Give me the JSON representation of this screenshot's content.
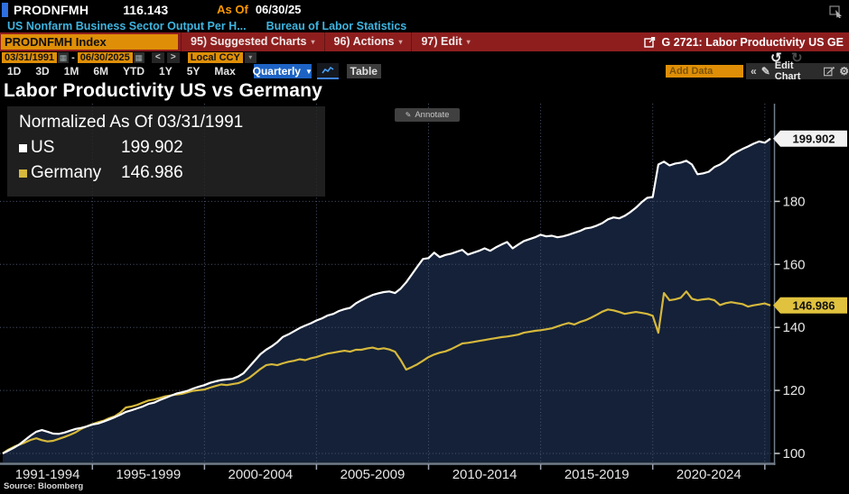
{
  "top_bar": {
    "ticker": "PRODNFMH",
    "last_value": "116.143",
    "as_of_label": "As Of",
    "as_of_date": "06/30/25"
  },
  "security_line": {
    "description": "US Nonfarm Business Sector Output Per H...",
    "provider": "Bureau of Labor Statistics"
  },
  "menu_bar": {
    "security_field": "PRODNFMH Index",
    "suggested_charts": "95) Suggested Charts",
    "actions": "96) Actions",
    "edit": "97) Edit",
    "chart_id": "G 2721: Labor Productivity US GE"
  },
  "range_bar": {
    "start_date": "03/31/1991",
    "separator": "-",
    "end_date": "06/30/2025",
    "prev": "<",
    "next": ">",
    "currency": "Local CCY"
  },
  "toolbar": {
    "periods": [
      "1D",
      "3D",
      "1M",
      "6M",
      "YTD",
      "1Y",
      "5Y",
      "Max"
    ],
    "frequency": "Quarterly",
    "table_label": "Table",
    "add_data_placeholder": "Add Data",
    "collapse_glyph": "«",
    "edit_chart_label": "Edit Chart"
  },
  "chart_header": {
    "title": "Labor Productivity US vs Germany",
    "annotate_label": "Annotate"
  },
  "legend": {
    "header": "Normalized As Of 03/31/1991",
    "series": [
      {
        "label": "US",
        "value": "199.902"
      },
      {
        "label": "Germany",
        "value": "146.986"
      }
    ]
  },
  "footer": {
    "source": "Source: Bloomberg"
  },
  "colors": {
    "us_line": "#ffffff",
    "germany_line": "#d6b83c",
    "area_fill": "#142138",
    "grid": "#4a5670",
    "axis": "#717d8a",
    "tick_label": "#e6e6e6",
    "us_badge_bg": "#f2f2f2",
    "germany_badge_bg": "#e0c23e",
    "accent_orange": "#df8f07",
    "bar_red": "#8e1e1e",
    "frequency_blue": "#1d63c4"
  },
  "chart_data": {
    "type": "line",
    "title": "Labor Productivity US vs Germany",
    "subtitle": "Normalized As Of 03/31/1991",
    "frequency": "quarterly",
    "x_start": "1991-Q1",
    "x_end": "2025-Q2",
    "x_group_labels": [
      "1991-1994",
      "1995-1999",
      "2000-2004",
      "2005-2009",
      "2010-2014",
      "2015-2019",
      "2020-2024"
    ],
    "x_group_boundaries_idx": [
      16,
      36,
      56,
      76,
      96,
      116,
      136
    ],
    "y_ticks": [
      100,
      120,
      140,
      160,
      180
    ],
    "ylim": [
      96,
      211
    ],
    "grid": true,
    "legend_position": "top-left",
    "series": [
      {
        "name": "US",
        "color": "#ffffff",
        "last_value": 199.902,
        "values": [
          100.0,
          100.9,
          101.8,
          102.9,
          104.3,
          105.7,
          106.9,
          107.4,
          106.9,
          106.3,
          106.2,
          106.6,
          107.2,
          107.8,
          108.1,
          108.6,
          109.2,
          109.5,
          110.1,
          110.8,
          111.5,
          112.3,
          113.2,
          113.7,
          114.3,
          114.9,
          115.7,
          116.1,
          116.9,
          117.6,
          118.3,
          119.0,
          119.4,
          119.9,
          120.6,
          121.2,
          121.7,
          122.4,
          122.9,
          123.3,
          123.5,
          123.7,
          124.4,
          125.5,
          127.5,
          129.5,
          131.5,
          132.9,
          134.0,
          135.3,
          137.0,
          137.8,
          138.8,
          139.8,
          140.6,
          141.3,
          142.2,
          142.9,
          143.8,
          144.3,
          145.2,
          145.8,
          146.2,
          147.6,
          148.6,
          149.5,
          150.3,
          150.8,
          151.2,
          151.4,
          150.9,
          152.3,
          154.3,
          156.8,
          159.3,
          161.7,
          162.0,
          163.7,
          162.3,
          163.0,
          163.4,
          164.0,
          164.6,
          163.1,
          163.7,
          164.3,
          165.1,
          164.3,
          165.4,
          166.3,
          167.1,
          165.1,
          166.3,
          167.4,
          168.0,
          168.6,
          169.4,
          168.9,
          169.1,
          168.6,
          168.9,
          169.4,
          170.0,
          170.6,
          171.4,
          171.7,
          172.3,
          173.1,
          174.3,
          174.9,
          174.6,
          175.4,
          176.6,
          178.0,
          179.7,
          181.1,
          181.4,
          191.7,
          192.6,
          191.4,
          192.0,
          192.3,
          192.9,
          191.7,
          188.6,
          188.9,
          189.4,
          190.9,
          191.7,
          192.9,
          194.6,
          195.7,
          196.6,
          197.4,
          198.3,
          199.0,
          198.6,
          199.902
        ]
      },
      {
        "name": "Germany",
        "color": "#d6b83c",
        "last_value": 146.986,
        "values": [
          100.0,
          101.2,
          102.1,
          102.8,
          103.5,
          104.3,
          104.8,
          104.2,
          103.8,
          104.0,
          104.6,
          105.2,
          105.9,
          106.7,
          107.8,
          108.6,
          109.3,
          109.9,
          110.4,
          111.2,
          111.8,
          113.0,
          114.6,
          114.9,
          115.4,
          116.1,
          116.8,
          117.1,
          117.6,
          118.1,
          118.4,
          118.7,
          118.9,
          119.4,
          119.9,
          120.1,
          120.3,
          120.9,
          121.4,
          121.9,
          121.7,
          122.0,
          122.3,
          123.0,
          124.0,
          125.4,
          126.8,
          128.0,
          128.3,
          128.0,
          128.6,
          129.1,
          129.4,
          129.9,
          129.6,
          130.2,
          130.6,
          131.2,
          131.7,
          132.0,
          132.3,
          132.6,
          132.3,
          132.9,
          132.9,
          133.3,
          133.6,
          133.1,
          133.4,
          133.0,
          132.3,
          129.7,
          126.6,
          127.4,
          128.3,
          129.4,
          130.6,
          131.4,
          132.0,
          132.4,
          133.1,
          134.0,
          134.9,
          135.1,
          135.4,
          135.7,
          136.0,
          136.3,
          136.6,
          136.9,
          137.1,
          137.4,
          137.7,
          138.3,
          138.6,
          138.9,
          139.1,
          139.4,
          139.7,
          140.3,
          140.9,
          141.4,
          140.9,
          141.7,
          142.3,
          143.1,
          144.0,
          145.0,
          145.7,
          145.4,
          144.9,
          144.3,
          144.6,
          144.9,
          144.6,
          144.3,
          143.7,
          138.3,
          150.9,
          148.6,
          148.9,
          149.4,
          151.4,
          149.1,
          148.6,
          148.9,
          149.1,
          148.6,
          147.1,
          147.7,
          148.0,
          147.7,
          147.4,
          146.6,
          147.0,
          147.3,
          147.6,
          146.986
        ]
      }
    ]
  }
}
